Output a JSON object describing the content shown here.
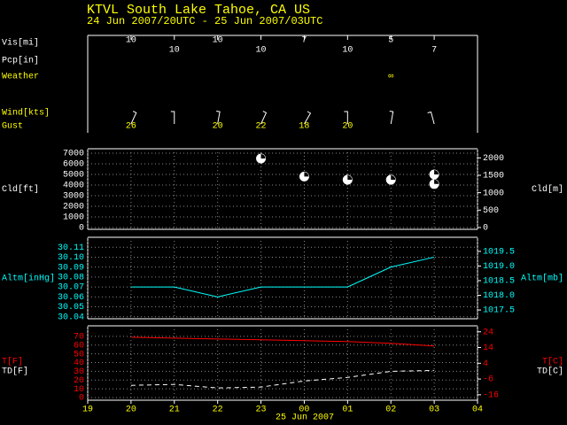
{
  "header": {
    "title": "KTVL  South Lake Tahoe, CA US",
    "subtitle": "24 Jun 2007/20UTC - 25 Jun 2007/03UTC"
  },
  "chart_data": [
    {
      "type": "station-rows",
      "x": [
        20,
        21,
        22,
        23,
        24,
        25,
        26,
        27
      ],
      "rows": [
        {
          "name": "Vis[mi]",
          "color": "#ffffff",
          "values": [
            10,
            10,
            10,
            10,
            7,
            10,
            5,
            7
          ]
        },
        {
          "name": "Pcp[in]",
          "color": "#ffffff",
          "values": [
            null,
            null,
            null,
            null,
            null,
            null,
            null,
            null
          ]
        },
        {
          "name": "Weather",
          "color": "#ffff00",
          "values": [
            null,
            null,
            null,
            null,
            null,
            null,
            "∞",
            null
          ]
        },
        {
          "name": "Wind[kts]",
          "color": "#ffff00",
          "kind": "barb",
          "values": [
            25,
            0,
            10,
            25,
            30,
            0,
            10,
            345
          ]
        },
        {
          "name": "Gust",
          "color": "#ffff00",
          "values": [
            26,
            null,
            20,
            22,
            18,
            20,
            null,
            null
          ]
        }
      ]
    },
    {
      "type": "scatter",
      "ylabel": "Cld[ft]",
      "y2label": "Cld[m]",
      "color": "#ffffff",
      "ylim": [
        -170,
        7420
      ],
      "yticks": [
        0,
        1000,
        2000,
        3000,
        4000,
        5000,
        6000,
        7000
      ],
      "y2lim": [
        -52,
        2262
      ],
      "y2ticks": [
        0,
        500,
        1000,
        1500,
        2000
      ],
      "grid": true,
      "x": [
        20,
        21,
        22,
        23,
        24,
        25,
        26,
        27
      ],
      "series": [
        {
          "color": "#ffffff",
          "values": [
            null,
            null,
            null,
            6500,
            4800,
            4500,
            4500,
            5000
          ]
        },
        {
          "color": "#ffffff",
          "values": [
            null,
            null,
            null,
            null,
            null,
            null,
            null,
            4100
          ]
        }
      ]
    },
    {
      "type": "line",
      "ylabel": "Altm[inHg]",
      "y2label": "Altm[mb]",
      "color": "#00ffff",
      "ylim": [
        30.038,
        30.12
      ],
      "yticks": [
        30.04,
        30.05,
        30.06,
        30.07,
        30.08,
        30.09,
        {
          "value": 30.1,
          "label": "30.10"
        },
        30.11
      ],
      "y2lim": [
        1017.2,
        1019.98
      ],
      "y2ticks": [
        1017.5,
        {
          "value": 1018,
          "label": "1018.0"
        },
        1018.5,
        {
          "value": 1019,
          "label": "1019.0"
        },
        1019.5
      ],
      "grid": true,
      "x": [
        20,
        21,
        22,
        23,
        24,
        25,
        26,
        27
      ],
      "series": [
        {
          "name": "Altm[inHg]",
          "y2name": "Altm[mb]",
          "color": "#00ffff",
          "values": [
            30.07,
            30.07,
            30.06,
            30.07,
            30.07,
            30.07,
            30.09,
            30.1
          ]
        }
      ]
    },
    {
      "type": "line",
      "color": "#ff0000",
      "ylim": [
        -3,
        82
      ],
      "yticks": [
        0,
        10,
        20,
        30,
        40,
        50,
        60,
        70
      ],
      "y2lim": [
        -19.44,
        27.78
      ],
      "y2ticks": [
        24,
        14,
        4,
        -6,
        -16
      ],
      "grid": true,
      "xlim": [
        19,
        28
      ],
      "xticks": [
        19,
        20,
        21,
        22,
        23,
        {
          "value": 24,
          "label": "00"
        },
        {
          "value": 25,
          "label": "01"
        },
        {
          "value": 26,
          "label": "02"
        },
        {
          "value": 27,
          "label": "03"
        },
        {
          "value": 28,
          "label": "04"
        }
      ],
      "xlabel": "25 Jun 2007",
      "x": [
        20,
        21,
        22,
        23,
        24,
        25,
        26,
        27
      ],
      "series": [
        {
          "name": "T[F]",
          "y2name": "T[C]",
          "color": "#ff0000",
          "values": [
            69,
            68,
            67,
            66,
            65,
            64,
            62,
            59
          ]
        },
        {
          "name": "TD[F]",
          "y2name": "TD[C]",
          "color": "#ffffff",
          "dash": true,
          "values": [
            14,
            15,
            11,
            12,
            19,
            23,
            30,
            31
          ]
        }
      ]
    }
  ]
}
